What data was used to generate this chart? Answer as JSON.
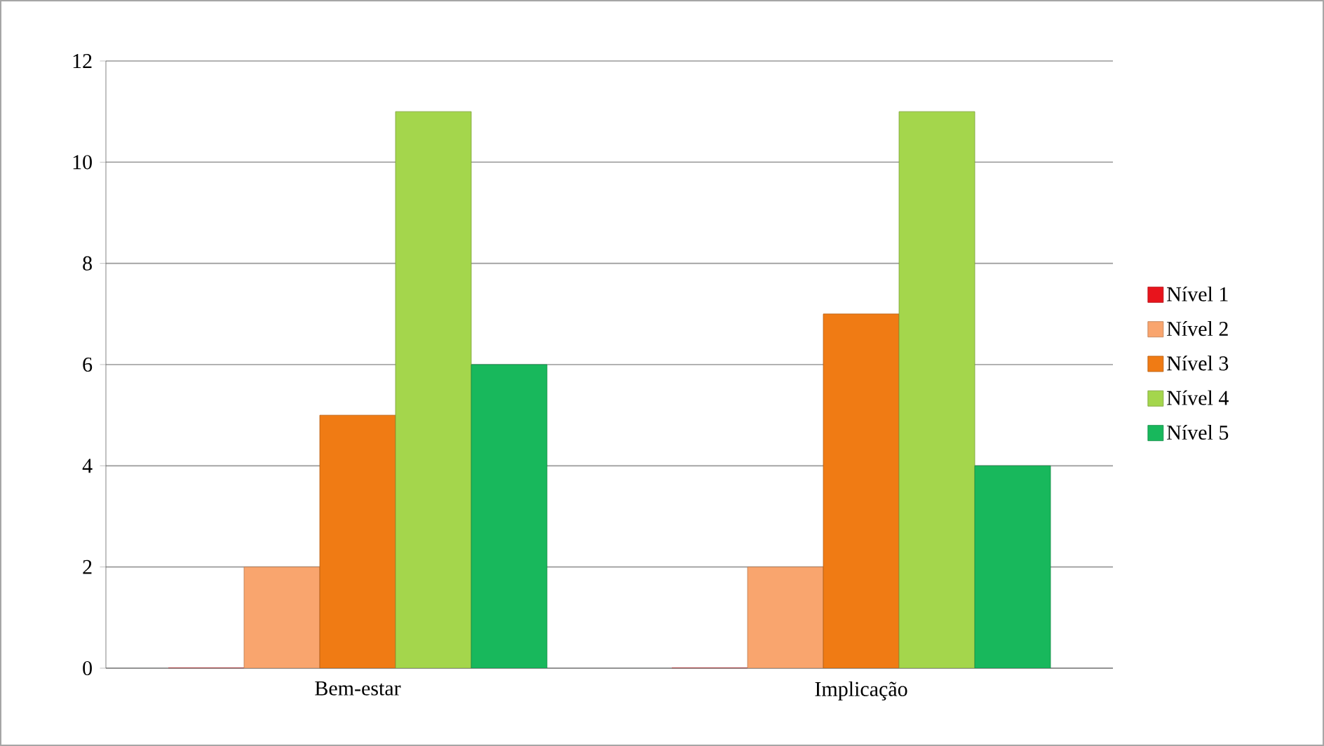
{
  "chart_data": {
    "type": "bar",
    "categories": [
      "Bem-estar",
      "Implicação"
    ],
    "series": [
      {
        "name": "Nível 1",
        "color": "#e8141c",
        "values": [
          0,
          0
        ]
      },
      {
        "name": "Nível 2",
        "color": "#f9a56e",
        "values": [
          2,
          2
        ]
      },
      {
        "name": "Nível 3",
        "color": "#f07b14",
        "values": [
          5,
          7
        ]
      },
      {
        "name": "Nível 4",
        "color": "#a4d64c",
        "values": [
          11,
          11
        ]
      },
      {
        "name": "Nível 5",
        "color": "#18b85c",
        "values": [
          6,
          4
        ]
      }
    ],
    "ylim": [
      0,
      12
    ],
    "yticks": [
      0,
      2,
      4,
      6,
      8,
      10,
      12
    ],
    "grid": "y",
    "legend": "right"
  }
}
